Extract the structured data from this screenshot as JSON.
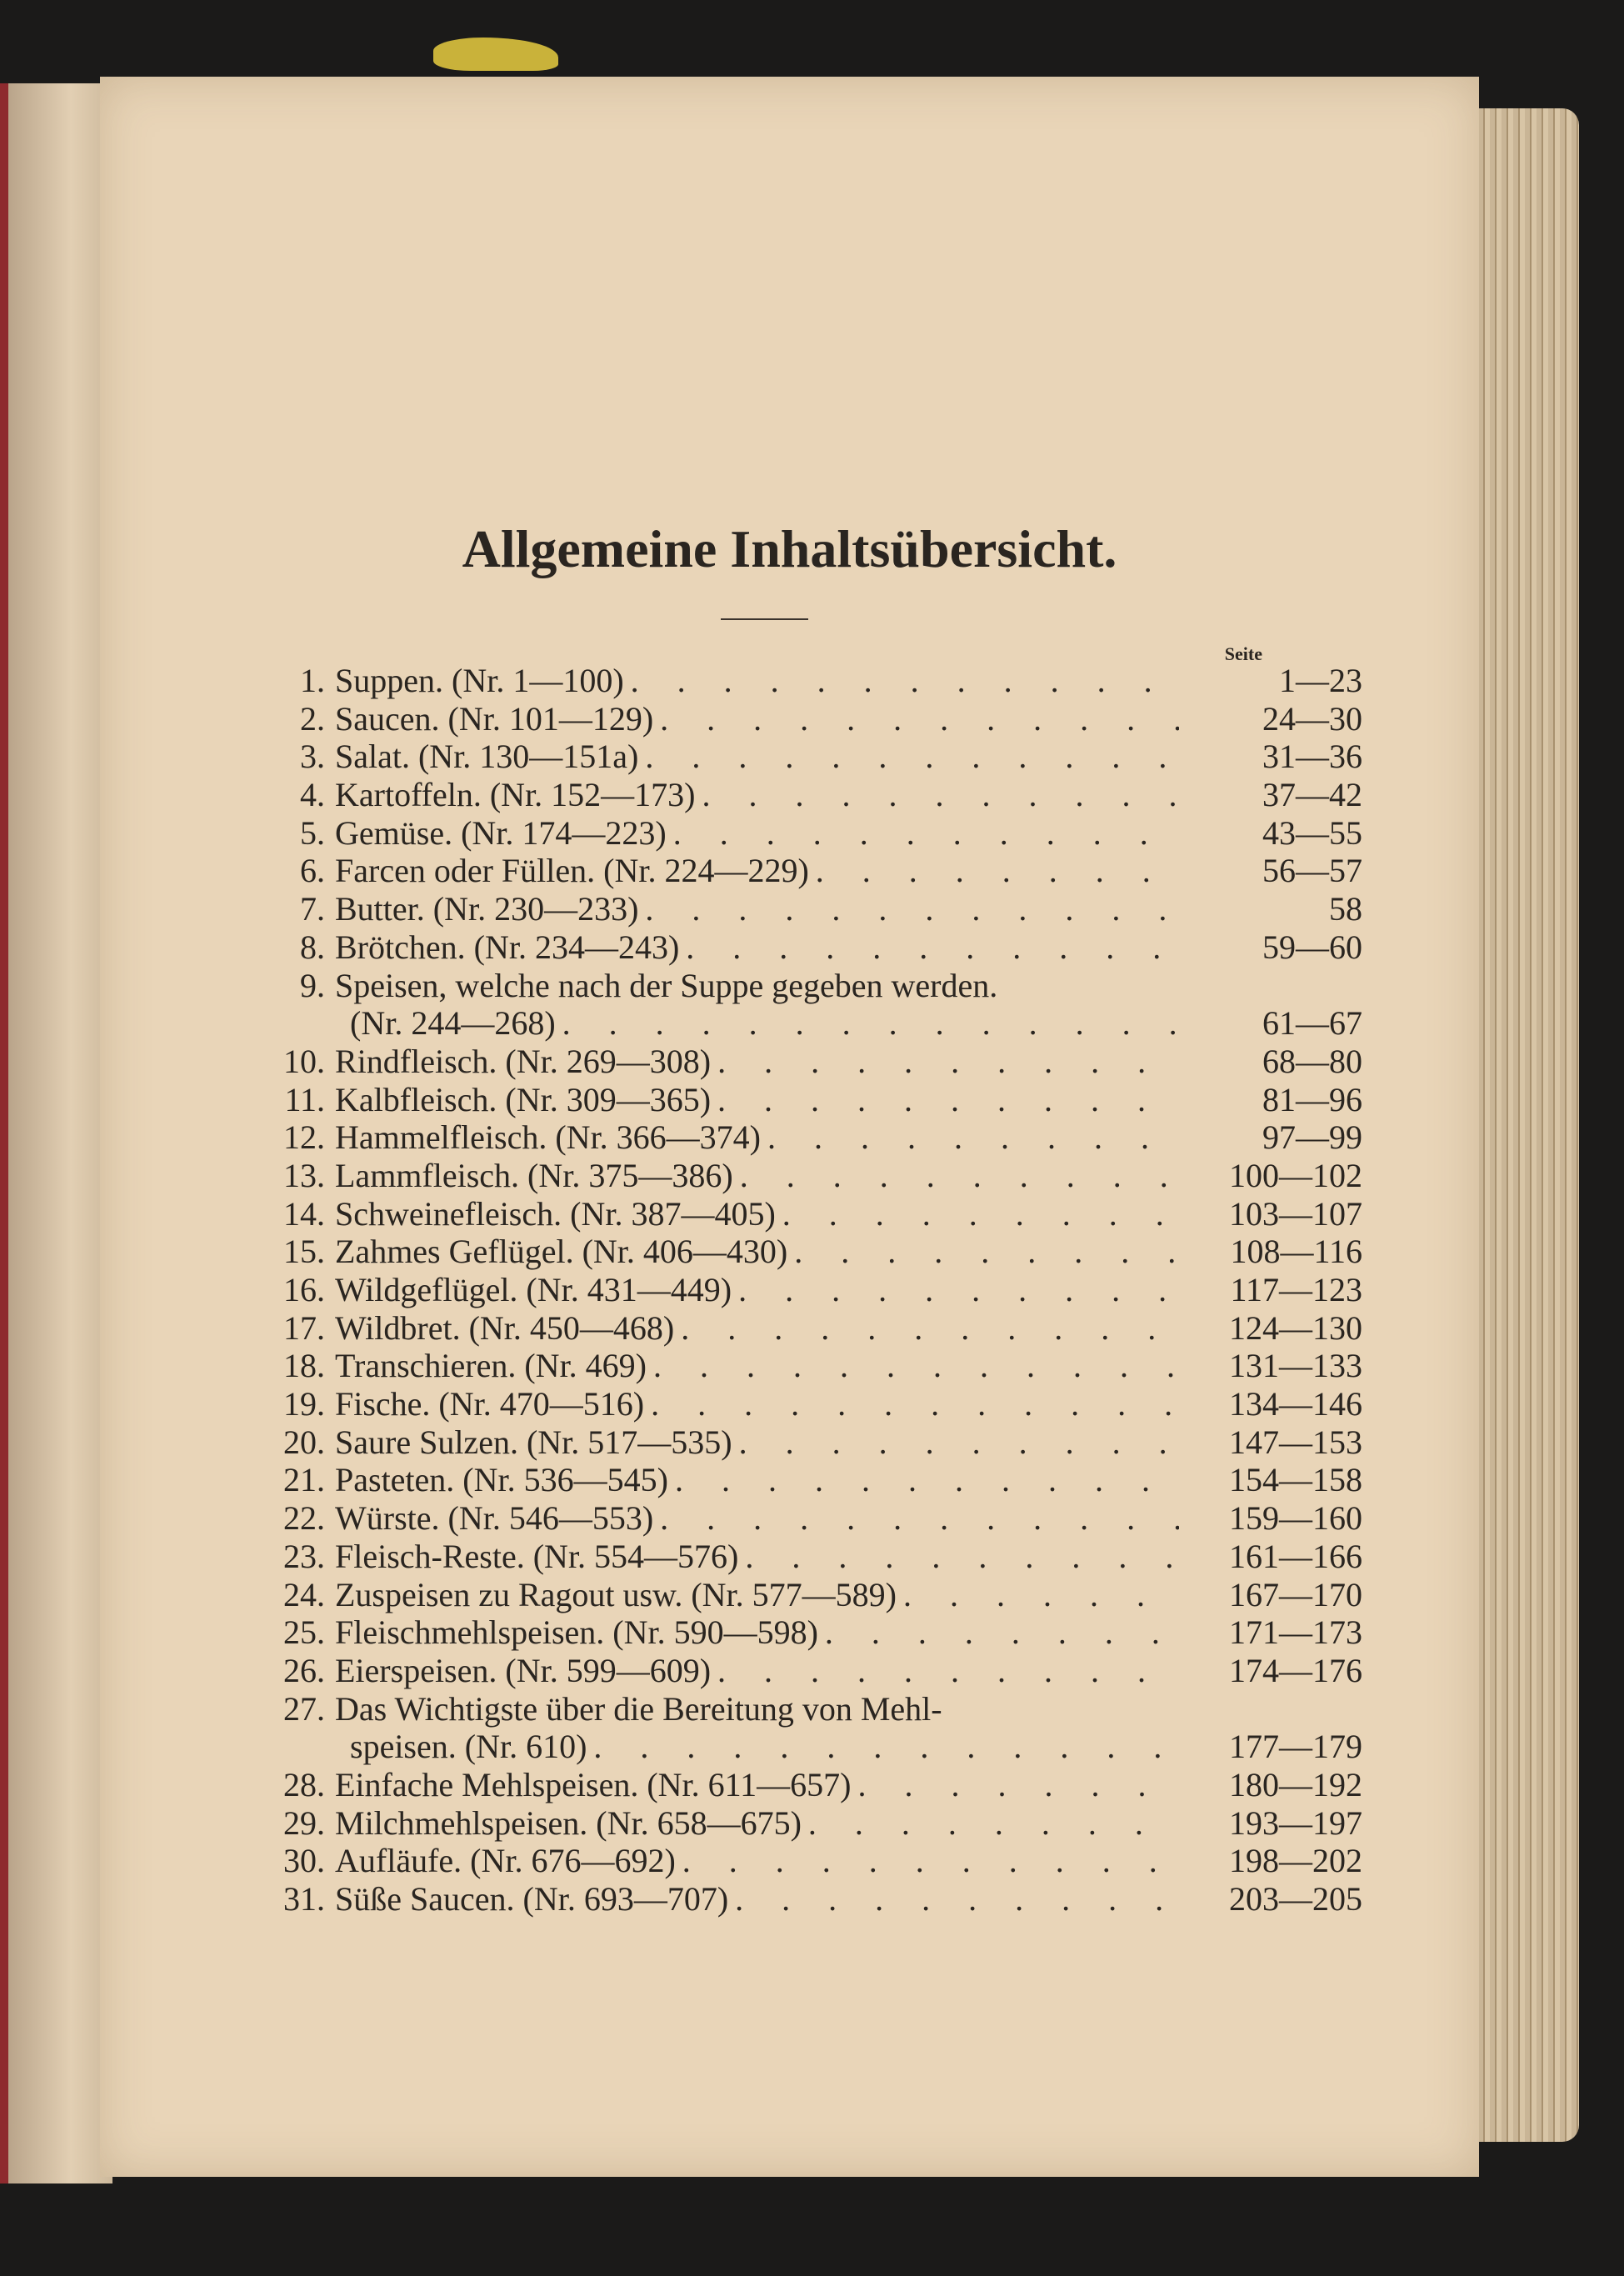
{
  "title": "Allgemeine Inhaltsübersicht.",
  "column_header": "Seite",
  "entries": [
    {
      "num": "1.",
      "text": "Suppen. (Nr. 1—100)",
      "pages": "1—23"
    },
    {
      "num": "2.",
      "text": "Saucen. (Nr. 101—129)",
      "pages": "24—30"
    },
    {
      "num": "3.",
      "text": "Salat. (Nr. 130—151a)",
      "pages": "31—36"
    },
    {
      "num": "4.",
      "text": "Kartoffeln. (Nr. 152—173)",
      "pages": "37—42"
    },
    {
      "num": "5.",
      "text": "Gemüse. (Nr. 174—223)",
      "pages": "43—55"
    },
    {
      "num": "6.",
      "text": "Farcen oder Füllen. (Nr. 224—229)",
      "pages": "56—57"
    },
    {
      "num": "7.",
      "text": "Butter. (Nr. 230—233)",
      "pages": "58"
    },
    {
      "num": "8.",
      "text": "Brötchen. (Nr. 234—243)",
      "pages": "59—60"
    },
    {
      "num": "9.",
      "text": "Speisen, welche nach der Suppe gegeben werden.",
      "text2": "(Nr. 244—268)",
      "pages": "61—67"
    },
    {
      "num": "10.",
      "text": "Rindfleisch. (Nr. 269—308)",
      "pages": "68—80"
    },
    {
      "num": "11.",
      "text": "Kalbfleisch. (Nr. 309—365)",
      "pages": "81—96"
    },
    {
      "num": "12.",
      "text": "Hammelfleisch. (Nr. 366—374)",
      "pages": "97—99"
    },
    {
      "num": "13.",
      "text": "Lammfleisch. (Nr. 375—386)",
      "pages": "100—102"
    },
    {
      "num": "14.",
      "text": "Schweinefleisch. (Nr. 387—405)",
      "pages": "103—107"
    },
    {
      "num": "15.",
      "text": "Zahmes Geflügel. (Nr. 406—430)",
      "pages": "108—116"
    },
    {
      "num": "16.",
      "text": "Wildgeflügel. (Nr. 431—449)",
      "pages": "117—123"
    },
    {
      "num": "17.",
      "text": "Wildbret. (Nr. 450—468)",
      "pages": "124—130"
    },
    {
      "num": "18.",
      "text": "Transchieren. (Nr. 469)",
      "pages": "131—133"
    },
    {
      "num": "19.",
      "text": "Fische. (Nr. 470—516)",
      "pages": "134—146"
    },
    {
      "num": "20.",
      "text": "Saure Sulzen. (Nr. 517—535)",
      "pages": "147—153"
    },
    {
      "num": "21.",
      "text": "Pasteten. (Nr. 536—545)",
      "pages": "154—158"
    },
    {
      "num": "22.",
      "text": "Würste. (Nr. 546—553)",
      "pages": "159—160"
    },
    {
      "num": "23.",
      "text": "Fleisch-Reste. (Nr. 554—576)",
      "pages": "161—166"
    },
    {
      "num": "24.",
      "text": "Zuspeisen zu Ragout usw. (Nr. 577—589)",
      "pages": "167—170"
    },
    {
      "num": "25.",
      "text": "Fleischmehlspeisen. (Nr. 590—598)",
      "pages": "171—173"
    },
    {
      "num": "26.",
      "text": "Eierspeisen. (Nr. 599—609)",
      "pages": "174—176"
    },
    {
      "num": "27.",
      "text": "Das Wichtigste über die Bereitung von Mehl-",
      "text2": "speisen. (Nr. 610)",
      "pages": "177—179"
    },
    {
      "num": "28.",
      "text": "Einfache Mehlspeisen. (Nr. 611—657)",
      "pages": "180—192"
    },
    {
      "num": "29.",
      "text": "Milchmehlspeisen. (Nr. 658—675)",
      "pages": "193—197"
    },
    {
      "num": "30.",
      "text": "Aufläufe. (Nr. 676—692)",
      "pages": "198—202"
    },
    {
      "num": "31.",
      "text": "Süße Saucen. (Nr. 693—707)",
      "pages": "203—205"
    }
  ]
}
